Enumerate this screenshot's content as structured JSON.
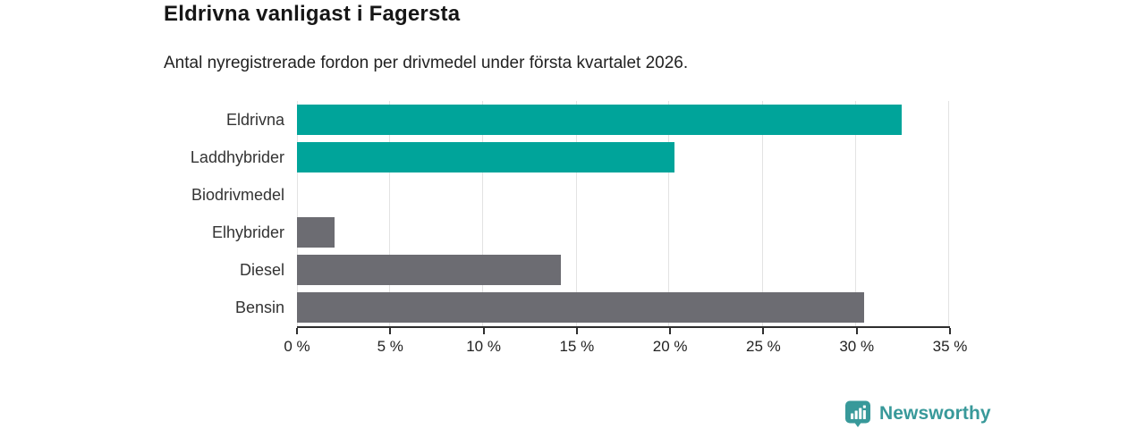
{
  "header": {
    "title": "Eldrivna vanligast i Fagersta",
    "subtitle": "Antal nyregistrerade fordon per drivmedel under första kvartalet 2026."
  },
  "chart_data": {
    "type": "bar",
    "orientation": "horizontal",
    "categories": [
      "Eldrivna",
      "Laddhybrider",
      "Biodrivmedel",
      "Elhybrider",
      "Diesel",
      "Bensin"
    ],
    "values": [
      32.5,
      20.3,
      0,
      2,
      14.2,
      30.5
    ],
    "unit": "%",
    "xlim": [
      0,
      35
    ],
    "xticks": [
      0,
      5,
      10,
      15,
      20,
      25,
      30,
      35
    ],
    "xtick_labels": [
      "0 %",
      "5 %",
      "10 %",
      "15 %",
      "20 %",
      "25 %",
      "30 %",
      "35 %"
    ],
    "grid": true,
    "legend": "none",
    "bar_colors": [
      "#00A49A",
      "#00A49A",
      "#6C6C72",
      "#6C6C72",
      "#6C6C72",
      "#6C6C72"
    ],
    "colors": {
      "highlight": "#00A49A",
      "base": "#6C6C72",
      "gridline": "#e3e3e3",
      "axis": "#2e2e2e"
    }
  },
  "footer": {
    "brand": "Newsworthy",
    "brand_color": "#38999A",
    "logo_icon": "newsworthy-speech-bubble-bar-chart-icon"
  }
}
